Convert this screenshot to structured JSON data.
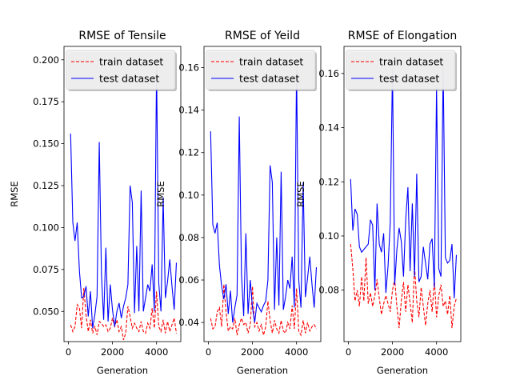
{
  "chart_data": [
    {
      "type": "line",
      "title": "RMSE of Tensile",
      "xlabel": "Generation",
      "ylabel": "RMSE",
      "xlim": [
        -200,
        5100
      ],
      "ylim": [
        0.032,
        0.208
      ],
      "xticks": [
        0,
        2000,
        4000
      ],
      "xtick_labels": [
        "0",
        "2000",
        "4000"
      ],
      "yticks": [
        0.05,
        0.075,
        0.1,
        0.125,
        0.15,
        0.175,
        0.2
      ],
      "ytick_labels": [
        "0.050",
        "0.075",
        "0.100",
        "0.125",
        "0.150",
        "0.175",
        "0.200"
      ],
      "legend_position": "upper-left",
      "x": [
        100,
        200,
        300,
        400,
        500,
        600,
        700,
        800,
        900,
        1000,
        1100,
        1200,
        1300,
        1400,
        1500,
        1600,
        1700,
        1800,
        1900,
        2000,
        2100,
        2200,
        2300,
        2400,
        2500,
        2600,
        2700,
        2800,
        2900,
        3000,
        3100,
        3200,
        3300,
        3400,
        3500,
        3600,
        3700,
        3800,
        3900,
        4000,
        4100,
        4200,
        4300,
        4400,
        4500,
        4600,
        4700,
        4800,
        4900
      ],
      "series": [
        {
          "name": "train dataset",
          "color": "#ff0000",
          "dash": "dashed",
          "values": [
            0.042,
            0.038,
            0.041,
            0.054,
            0.052,
            0.04,
            0.064,
            0.048,
            0.038,
            0.045,
            0.037,
            0.041,
            0.036,
            0.044,
            0.043,
            0.041,
            0.042,
            0.038,
            0.04,
            0.046,
            0.041,
            0.045,
            0.038,
            0.041,
            0.033,
            0.037,
            0.053,
            0.047,
            0.04,
            0.043,
            0.04,
            0.038,
            0.044,
            0.038,
            0.037,
            0.043,
            0.04,
            0.052,
            0.04,
            0.062,
            0.041,
            0.038,
            0.045,
            0.037,
            0.044,
            0.038,
            0.042,
            0.046,
            0.037
          ]
        },
        {
          "name": "test dataset",
          "color": "#0000ff",
          "dash": "solid",
          "values": [
            0.156,
            0.103,
            0.092,
            0.103,
            0.074,
            0.058,
            0.059,
            0.065,
            0.047,
            0.062,
            0.04,
            0.048,
            0.059,
            0.151,
            0.072,
            0.045,
            0.088,
            0.044,
            0.066,
            0.051,
            0.041,
            0.05,
            0.055,
            0.046,
            0.053,
            0.058,
            0.066,
            0.125,
            0.115,
            0.049,
            0.089,
            0.05,
            0.122,
            0.05,
            0.058,
            0.066,
            0.062,
            0.078,
            0.05,
            0.196,
            0.067,
            0.05,
            0.118,
            0.058,
            0.068,
            0.081,
            0.065,
            0.051,
            0.079
          ]
        }
      ]
    },
    {
      "type": "line",
      "title": "RMSE of Yeild",
      "xlabel": "Generation",
      "ylabel": "RMSE",
      "xlim": [
        -200,
        5100
      ],
      "ylim": [
        0.031,
        0.17
      ],
      "xticks": [
        0,
        2000,
        4000
      ],
      "xtick_labels": [
        "0",
        "2000",
        "4000"
      ],
      "yticks": [
        0.04,
        0.06,
        0.08,
        0.1,
        0.12,
        0.14,
        0.16
      ],
      "ytick_labels": [
        "0.04",
        "0.06",
        "0.08",
        "0.10",
        "0.12",
        "0.14",
        "0.16"
      ],
      "legend_position": "upper-left",
      "x": [
        100,
        200,
        300,
        400,
        500,
        600,
        700,
        800,
        900,
        1000,
        1100,
        1200,
        1300,
        1400,
        1500,
        1600,
        1700,
        1800,
        1900,
        2000,
        2100,
        2200,
        2300,
        2400,
        2500,
        2600,
        2700,
        2800,
        2900,
        3000,
        3100,
        3200,
        3300,
        3400,
        3500,
        3600,
        3700,
        3800,
        3900,
        4000,
        4100,
        4200,
        4300,
        4400,
        4500,
        4600,
        4700,
        4800,
        4900
      ],
      "series": [
        {
          "name": "train dataset",
          "color": "#ff0000",
          "dash": "dashed",
          "values": [
            0.042,
            0.037,
            0.038,
            0.045,
            0.047,
            0.038,
            0.058,
            0.045,
            0.036,
            0.038,
            0.037,
            0.042,
            0.034,
            0.039,
            0.042,
            0.039,
            0.04,
            0.035,
            0.039,
            0.057,
            0.038,
            0.04,
            0.036,
            0.039,
            0.034,
            0.038,
            0.05,
            0.041,
            0.035,
            0.041,
            0.037,
            0.035,
            0.041,
            0.036,
            0.035,
            0.04,
            0.037,
            0.048,
            0.037,
            0.056,
            0.036,
            0.034,
            0.041,
            0.035,
            0.04,
            0.036,
            0.038,
            0.039,
            0.037
          ]
        },
        {
          "name": "test dataset",
          "color": "#0000ff",
          "dash": "solid",
          "values": [
            0.13,
            0.086,
            0.082,
            0.087,
            0.067,
            0.057,
            0.051,
            0.058,
            0.044,
            0.055,
            0.04,
            0.047,
            0.053,
            0.137,
            0.063,
            0.043,
            0.082,
            0.044,
            0.06,
            0.047,
            0.04,
            0.049,
            0.047,
            0.045,
            0.048,
            0.05,
            0.06,
            0.114,
            0.106,
            0.046,
            0.08,
            0.048,
            0.111,
            0.046,
            0.052,
            0.06,
            0.056,
            0.071,
            0.047,
            0.16,
            0.06,
            0.047,
            0.106,
            0.052,
            0.061,
            0.071,
            0.058,
            0.047,
            0.066
          ]
        }
      ]
    },
    {
      "type": "line",
      "title": "RMSE of Elongation",
      "xlabel": "Generation",
      "ylabel": "RMSE",
      "xlim": [
        -200,
        5100
      ],
      "ylim": [
        0.061,
        0.17
      ],
      "xticks": [
        0,
        2000,
        4000
      ],
      "xtick_labels": [
        "0",
        "2000",
        "4000"
      ],
      "yticks": [
        0.08,
        0.1,
        0.12,
        0.14,
        0.16
      ],
      "ytick_labels": [
        "0.08",
        "0.10",
        "0.12",
        "0.14",
        "0.16"
      ],
      "legend_position": "upper-left",
      "x": [
        100,
        200,
        300,
        400,
        500,
        600,
        700,
        800,
        900,
        1000,
        1100,
        1200,
        1300,
        1400,
        1500,
        1600,
        1700,
        1800,
        1900,
        2000,
        2100,
        2200,
        2300,
        2400,
        2500,
        2600,
        2700,
        2800,
        2900,
        3000,
        3100,
        3200,
        3300,
        3400,
        3500,
        3600,
        3700,
        3800,
        3900,
        4000,
        4100,
        4200,
        4300,
        4400,
        4500,
        4600,
        4700,
        4800,
        4900
      ],
      "series": [
        {
          "name": "train dataset",
          "color": "#ff0000",
          "dash": "dashed",
          "values": [
            0.097,
            0.088,
            0.076,
            0.08,
            0.074,
            0.085,
            0.076,
            0.092,
            0.075,
            0.079,
            0.074,
            0.078,
            0.084,
            0.077,
            0.071,
            0.075,
            0.078,
            0.075,
            0.072,
            0.08,
            0.084,
            0.074,
            0.066,
            0.076,
            0.083,
            0.072,
            0.082,
            0.075,
            0.068,
            0.089,
            0.076,
            0.07,
            0.081,
            0.074,
            0.067,
            0.075,
            0.08,
            0.072,
            0.084,
            0.07,
            0.078,
            0.082,
            0.074,
            0.076,
            0.071,
            0.078,
            0.066,
            0.074,
            0.077
          ]
        },
        {
          "name": "test dataset",
          "color": "#0000ff",
          "dash": "solid",
          "values": [
            0.121,
            0.102,
            0.11,
            0.108,
            0.096,
            0.094,
            0.095,
            0.096,
            0.097,
            0.106,
            0.104,
            0.08,
            0.112,
            0.097,
            0.094,
            0.101,
            0.079,
            0.089,
            0.105,
            0.162,
            0.082,
            0.095,
            0.103,
            0.098,
            0.085,
            0.106,
            0.118,
            0.087,
            0.112,
            0.085,
            0.123,
            0.083,
            0.085,
            0.096,
            0.09,
            0.084,
            0.097,
            0.099,
            0.081,
            0.155,
            0.088,
            0.085,
            0.163,
            0.092,
            0.09,
            0.091,
            0.097,
            0.077,
            0.093
          ]
        }
      ]
    }
  ]
}
